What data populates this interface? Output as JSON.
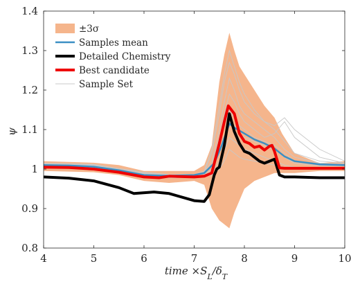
{
  "chart_data": {
    "type": "line",
    "xlabel": "time ×S_L/δ_T",
    "ylabel": "ψ",
    "xlim": [
      4,
      10
    ],
    "ylim": [
      0.8,
      1.4
    ],
    "x_ticks": [
      "4",
      "5",
      "6",
      "7",
      "8",
      "9",
      "10"
    ],
    "y_ticks": [
      "0.8",
      "0.9",
      "1",
      "1.1",
      "1.2",
      "1.3",
      "1.4"
    ],
    "grid": false,
    "legend_position": "top-left",
    "legend": [
      "±3σ",
      "Samples mean",
      "Detailed Chemistry",
      "Best candidate",
      "Sample Set"
    ],
    "band": {
      "name": "±3σ",
      "color": "#f5b58c",
      "x": [
        4.0,
        5.0,
        5.5,
        6.0,
        6.5,
        7.0,
        7.2,
        7.35,
        7.5,
        7.6,
        7.7,
        7.8,
        7.9,
        8.0,
        8.2,
        8.4,
        8.6,
        8.75,
        9.0,
        9.5,
        10.0
      ],
      "upper": [
        1.02,
        1.016,
        1.01,
        0.995,
        0.995,
        0.995,
        1.01,
        1.06,
        1.22,
        1.29,
        1.345,
        1.3,
        1.26,
        1.24,
        1.2,
        1.16,
        1.13,
        1.09,
        1.04,
        1.015,
        1.02
      ],
      "lower": [
        0.995,
        0.992,
        0.985,
        0.97,
        0.965,
        0.97,
        0.96,
        0.9,
        0.87,
        0.86,
        0.85,
        0.89,
        0.92,
        0.95,
        0.97,
        0.98,
        0.99,
        0.99,
        0.99,
        0.995,
        0.995
      ]
    },
    "series": [
      {
        "name": "Samples mean",
        "color": "#3a8fc4",
        "x": [
          4.0,
          4.5,
          5.0,
          5.5,
          6.0,
          6.5,
          7.0,
          7.2,
          7.4,
          7.55,
          7.7,
          7.8,
          8.0,
          8.2,
          8.4,
          8.6,
          8.8,
          9.0,
          9.5,
          10.0
        ],
        "y": [
          1.01,
          1.009,
          1.006,
          0.997,
          0.985,
          0.983,
          0.985,
          0.99,
          1.015,
          1.06,
          1.115,
          1.105,
          1.09,
          1.075,
          1.065,
          1.052,
          1.032,
          1.02,
          1.012,
          1.01
        ]
      },
      {
        "name": "Detailed Chemistry",
        "color": "#000000",
        "x": [
          4.0,
          4.5,
          5.0,
          5.5,
          5.8,
          6.2,
          6.5,
          7.0,
          7.2,
          7.3,
          7.4,
          7.45,
          7.5,
          7.6,
          7.7,
          7.8,
          7.9,
          8.0,
          8.1,
          8.2,
          8.3,
          8.4,
          8.5,
          8.6,
          8.7,
          8.8,
          9.0,
          9.5,
          10.0
        ],
        "y": [
          0.98,
          0.977,
          0.97,
          0.953,
          0.938,
          0.942,
          0.938,
          0.92,
          0.918,
          0.935,
          0.985,
          1.0,
          1.005,
          1.06,
          1.14,
          1.095,
          1.065,
          1.045,
          1.04,
          1.03,
          1.02,
          1.015,
          1.02,
          1.025,
          0.985,
          0.98,
          0.98,
          0.978,
          0.978
        ]
      },
      {
        "name": "Best candidate",
        "color": "#ee0000",
        "x": [
          4.0,
          4.5,
          5.0,
          5.5,
          6.0,
          6.3,
          6.5,
          7.0,
          7.2,
          7.35,
          7.5,
          7.6,
          7.68,
          7.8,
          7.9,
          8.0,
          8.1,
          8.2,
          8.3,
          8.4,
          8.5,
          8.55,
          8.6,
          8.7,
          8.8,
          9.0,
          9.5,
          10.0
        ],
        "y": [
          1.005,
          1.004,
          1.0,
          0.992,
          0.98,
          0.978,
          0.982,
          0.98,
          0.982,
          0.99,
          1.065,
          1.12,
          1.16,
          1.14,
          1.09,
          1.07,
          1.065,
          1.055,
          1.058,
          1.048,
          1.058,
          1.06,
          1.045,
          1.003,
          1.002,
          1.002,
          1.002,
          1.002
        ]
      }
    ],
    "sample_set": {
      "name": "Sample Set",
      "color": "#c8c8c8",
      "x": [
        4.0,
        5.0,
        6.0,
        6.5,
        7.0,
        7.2,
        7.35,
        7.5,
        7.6,
        7.7,
        7.8,
        7.9,
        8.0,
        8.2,
        8.4,
        8.6,
        8.8,
        9.0,
        9.5,
        10.0
      ],
      "curves": [
        [
          1.015,
          1.012,
          0.99,
          0.985,
          0.985,
          0.99,
          1.02,
          1.1,
          1.17,
          1.23,
          1.2,
          1.16,
          1.14,
          1.12,
          1.1,
          1.08,
          1.05,
          1.03,
          1.015,
          1.012
        ],
        [
          1.01,
          1.008,
          0.985,
          0.98,
          0.982,
          0.985,
          1.0,
          1.06,
          1.11,
          1.15,
          1.13,
          1.11,
          1.1,
          1.08,
          1.07,
          1.06,
          1.04,
          1.02,
          1.01,
          1.01
        ],
        [
          1.005,
          1.003,
          0.98,
          0.978,
          0.978,
          0.98,
          0.99,
          1.02,
          1.05,
          1.08,
          1.07,
          1.06,
          1.05,
          1.04,
          1.03,
          1.02,
          1.01,
          1.005,
          1.003,
          1.003
        ],
        [
          1.012,
          1.01,
          0.988,
          0.983,
          0.984,
          0.992,
          1.04,
          1.14,
          1.22,
          1.27,
          1.24,
          1.2,
          1.17,
          1.14,
          1.12,
          1.1,
          1.07,
          1.04,
          1.02,
          1.015
        ],
        [
          1.008,
          1.006,
          0.984,
          0.979,
          0.98,
          0.983,
          0.995,
          1.04,
          1.08,
          1.12,
          1.11,
          1.09,
          1.08,
          1.07,
          1.06,
          1.05,
          1.03,
          1.015,
          1.008,
          1.008
        ],
        [
          1.014,
          1.011,
          0.992,
          0.986,
          0.986,
          0.995,
          1.05,
          1.16,
          1.24,
          1.3,
          1.26,
          1.22,
          1.19,
          1.15,
          1.12,
          1.11,
          1.13,
          1.1,
          1.05,
          1.02
        ],
        [
          1.006,
          1.004,
          0.982,
          0.978,
          0.979,
          0.981,
          0.985,
          1.0,
          1.02,
          1.05,
          1.04,
          1.03,
          1.025,
          1.02,
          1.015,
          1.01,
          1.005,
          1.003,
          1.002,
          1.002
        ],
        [
          1.011,
          1.009,
          0.987,
          0.982,
          0.983,
          0.988,
          1.01,
          1.08,
          1.14,
          1.19,
          1.17,
          1.14,
          1.12,
          1.1,
          1.08,
          1.09,
          1.12,
          1.08,
          1.03,
          1.015
        ]
      ]
    }
  }
}
